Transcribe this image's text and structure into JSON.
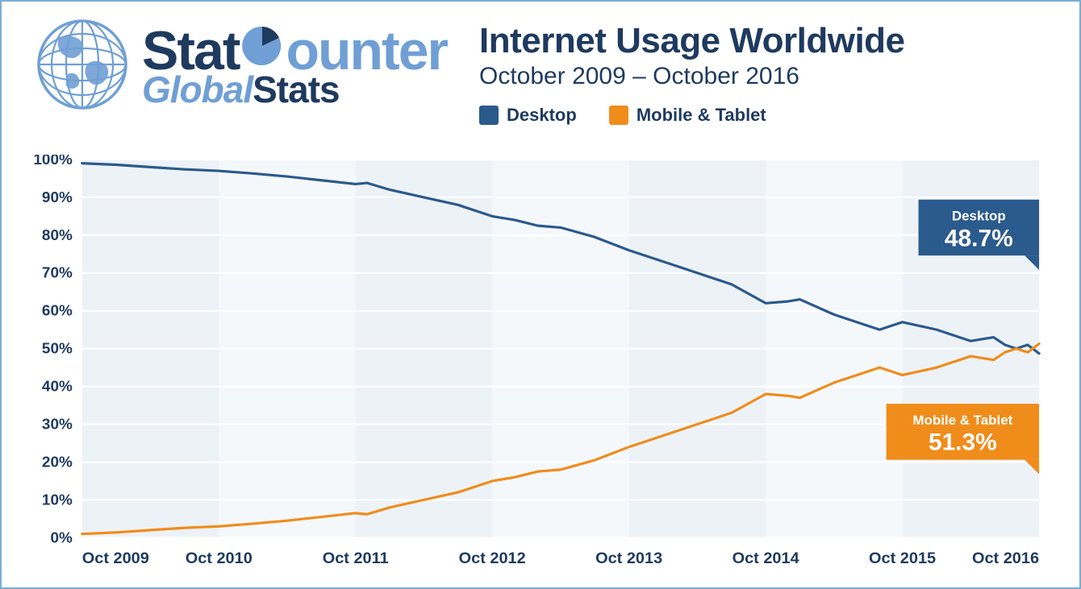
{
  "logo": {
    "line1_a": "Stat",
    "line1_b": "C",
    "line1_c": "ounter",
    "line2_a": "Global",
    "line2_b": "Stats",
    "color_dark": "#1e3a5f",
    "color_light": "#6f9fd4"
  },
  "title": {
    "main": "Internet Usage Worldwide",
    "sub": "October 2009 – October 2016"
  },
  "legend": {
    "desktop": {
      "label": "Desktop",
      "color": "#2b5a8c"
    },
    "mobile": {
      "label": "Mobile & Tablet",
      "color": "#f08c1a"
    }
  },
  "callouts": {
    "desktop": {
      "label": "Desktop",
      "value": "48.7%",
      "bg": "#2b5a8c"
    },
    "mobile": {
      "label": "Mobile & Tablet",
      "value": "51.3%",
      "bg": "#f08c1a"
    }
  },
  "chart": {
    "type": "line",
    "background_color": "#ffffff",
    "plot_bg": "#edf2f7",
    "plot_band": "#f5f8fb",
    "grid_color": "#ffffff",
    "ylim": [
      0,
      100
    ],
    "ytick_step": 10,
    "y_unit": "%",
    "line_width": 3.2,
    "x_labels": [
      "Oct 2009",
      "Oct 2010",
      "Oct 2011",
      "Oct 2012",
      "Oct 2013",
      "Oct 2014",
      "Oct 2015",
      "Oct 2016"
    ],
    "x_domain_months": 84,
    "series": {
      "desktop": {
        "color": "#2b5a8c",
        "points": [
          [
            0,
            99.0
          ],
          [
            3,
            98.6
          ],
          [
            6,
            98.0
          ],
          [
            9,
            97.4
          ],
          [
            12,
            97.0
          ],
          [
            15,
            96.3
          ],
          [
            18,
            95.5
          ],
          [
            21,
            94.5
          ],
          [
            24,
            93.5
          ],
          [
            25,
            93.8
          ],
          [
            27,
            92.0
          ],
          [
            30,
            90.0
          ],
          [
            33,
            88.0
          ],
          [
            36,
            85.0
          ],
          [
            38,
            84.0
          ],
          [
            40,
            82.5
          ],
          [
            42,
            82.0
          ],
          [
            45,
            79.5
          ],
          [
            48,
            76.0
          ],
          [
            51,
            73.0
          ],
          [
            54,
            70.0
          ],
          [
            57,
            67.0
          ],
          [
            60,
            62.0
          ],
          [
            62,
            62.5
          ],
          [
            63,
            63.0
          ],
          [
            66,
            59.0
          ],
          [
            69,
            56.0
          ],
          [
            70,
            55.0
          ],
          [
            72,
            57.0
          ],
          [
            75,
            55.0
          ],
          [
            78,
            52.0
          ],
          [
            80,
            53.0
          ],
          [
            81,
            51.0
          ],
          [
            82,
            50.0
          ],
          [
            83,
            51.0
          ],
          [
            84,
            48.7
          ]
        ]
      },
      "mobile": {
        "color": "#f08c1a",
        "points": [
          [
            0,
            1.0
          ],
          [
            3,
            1.4
          ],
          [
            6,
            2.0
          ],
          [
            9,
            2.6
          ],
          [
            12,
            3.0
          ],
          [
            15,
            3.7
          ],
          [
            18,
            4.5
          ],
          [
            21,
            5.5
          ],
          [
            24,
            6.5
          ],
          [
            25,
            6.2
          ],
          [
            27,
            8.0
          ],
          [
            30,
            10.0
          ],
          [
            33,
            12.0
          ],
          [
            36,
            15.0
          ],
          [
            38,
            16.0
          ],
          [
            40,
            17.5
          ],
          [
            42,
            18.0
          ],
          [
            45,
            20.5
          ],
          [
            48,
            24.0
          ],
          [
            51,
            27.0
          ],
          [
            54,
            30.0
          ],
          [
            57,
            33.0
          ],
          [
            60,
            38.0
          ],
          [
            62,
            37.5
          ],
          [
            63,
            37.0
          ],
          [
            66,
            41.0
          ],
          [
            69,
            44.0
          ],
          [
            70,
            45.0
          ],
          [
            72,
            43.0
          ],
          [
            75,
            45.0
          ],
          [
            78,
            48.0
          ],
          [
            80,
            47.0
          ],
          [
            81,
            49.0
          ],
          [
            82,
            50.0
          ],
          [
            83,
            49.0
          ],
          [
            84,
            51.3
          ]
        ]
      }
    },
    "title_fontsize": 44,
    "subtitle_fontsize": 30,
    "axis_label_fontsize": 20,
    "y_label_fontsize": 19
  }
}
